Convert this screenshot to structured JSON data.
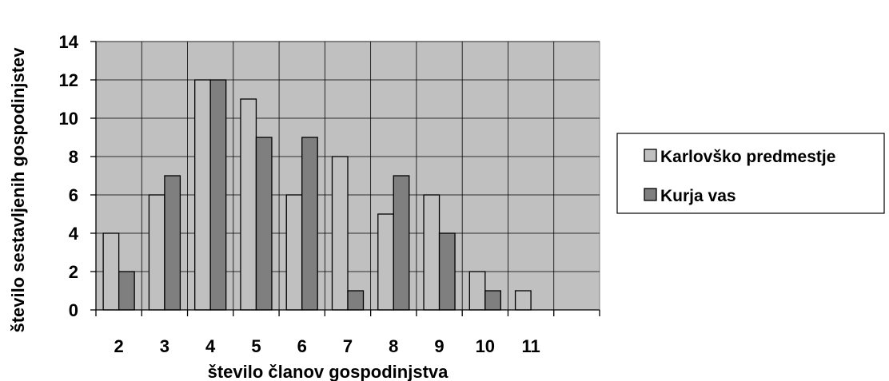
{
  "chart_data": {
    "type": "bar",
    "categories": [
      "2",
      "3",
      "4",
      "5",
      "6",
      "7",
      "8",
      "9",
      "10",
      "11",
      ""
    ],
    "series": [
      {
        "name": "Karlovško predmestje",
        "values": [
          4,
          6,
          12,
          11,
          6,
          8,
          5,
          6,
          2,
          1,
          null
        ],
        "color": "#c0c0c0"
      },
      {
        "name": "Kurja vas",
        "values": [
          2,
          7,
          12,
          9,
          9,
          1,
          7,
          4,
          1,
          0,
          null
        ],
        "color": "#7f7f7f"
      }
    ],
    "xlabel": "število članov gospodinjstva",
    "ylabel": "število sestavljenih gospodinjstev",
    "ylim": [
      0,
      14
    ],
    "yticks": [
      0,
      2,
      4,
      6,
      8,
      10,
      12,
      14
    ],
    "grid": true,
    "legend": "right",
    "plot_background": "#c0c0c0"
  }
}
